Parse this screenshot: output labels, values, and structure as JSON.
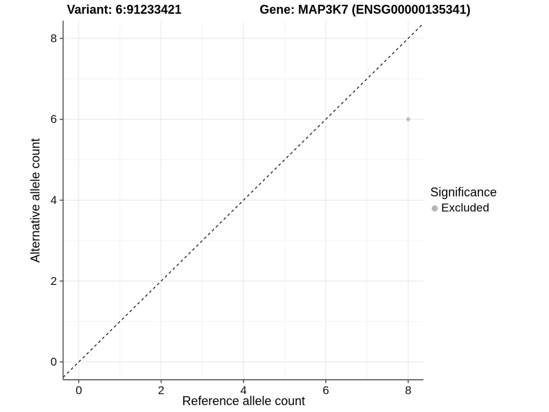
{
  "chart_data": {
    "type": "scatter",
    "title_left": "Variant: 6:91233421",
    "title_right": "Gene: MAP3K7 (ENSG00000135341)",
    "xlabel": "Reference allele count",
    "ylabel": "Alternative allele count",
    "xlim": [
      -0.38,
      8.37
    ],
    "ylim": [
      -0.44,
      8.44
    ],
    "x_major_ticks": [
      0,
      2,
      4,
      6,
      8
    ],
    "y_major_ticks": [
      0,
      2,
      4,
      6,
      8
    ],
    "x_minor_gridlines": [
      1,
      3,
      5,
      7
    ],
    "y_minor_gridlines": [
      1,
      3,
      5,
      7
    ],
    "grid": true,
    "series": [
      {
        "name": "Excluded",
        "color": "#bcbcbc",
        "point_radius": 2.8,
        "points": [
          {
            "x": 8,
            "y": 6
          }
        ]
      }
    ],
    "reference_line": {
      "slope": 1,
      "intercept": 0,
      "style": "dashed",
      "color": "#000000"
    },
    "legend": {
      "title": "Significance",
      "position": "right",
      "entries": [
        {
          "label": "Excluded",
          "color": "#b5b5b5"
        }
      ]
    },
    "colors": {
      "background": "#ffffff",
      "grid_major": "#e4e4e4",
      "grid_minor": "#f2f2f2",
      "axis": "#474747",
      "text": "#000000"
    }
  }
}
